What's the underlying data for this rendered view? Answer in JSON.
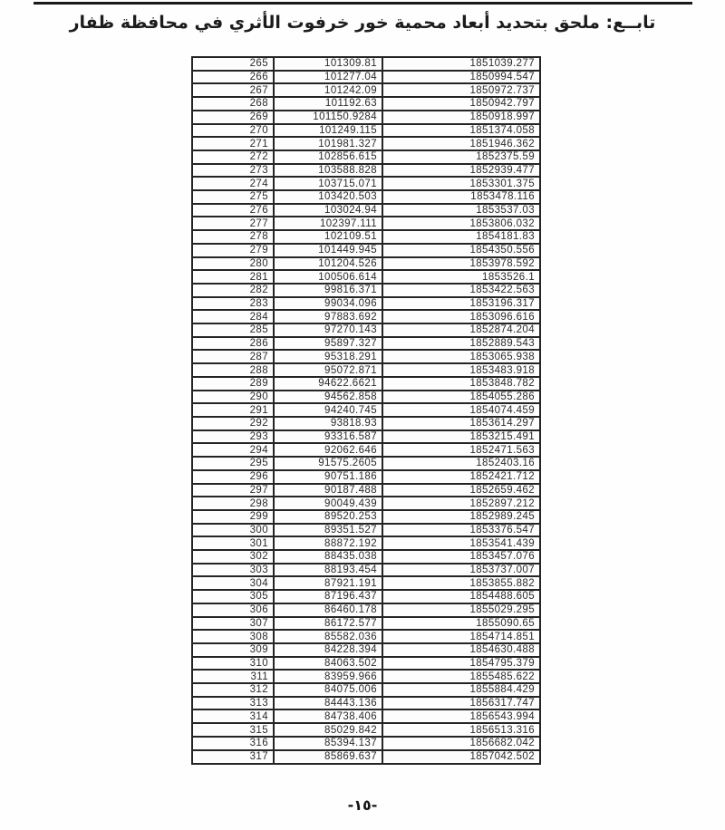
{
  "colors": {
    "ink": "#262626",
    "background": "#ffffff"
  },
  "header": {
    "title": "تابــع: ملحق بتحديد أبعاد محمية خور خرفوت الأثري في محافظة ظفار"
  },
  "table": {
    "rows": [
      [
        "265",
        "101309.81",
        "1851039.277"
      ],
      [
        "266",
        "101277.04",
        "1850994.547"
      ],
      [
        "267",
        "101242.09",
        "1850972.737"
      ],
      [
        "268",
        "101192.63",
        "1850942.797"
      ],
      [
        "269",
        "101150.9284",
        "1850918.997"
      ],
      [
        "270",
        "101249.115",
        "1851374.058"
      ],
      [
        "271",
        "101981.327",
        "1851946.362"
      ],
      [
        "272",
        "102856.615",
        "1852375.59"
      ],
      [
        "273",
        "103588.828",
        "1852939.477"
      ],
      [
        "274",
        "103715.071",
        "1853301.375"
      ],
      [
        "275",
        "103420.503",
        "1853478.116"
      ],
      [
        "276",
        "103024.94",
        "1853537.03"
      ],
      [
        "277",
        "102397.111",
        "1853806.032"
      ],
      [
        "278",
        "102109.51",
        "1854181.83"
      ],
      [
        "279",
        "101449.945",
        "1854350.556"
      ],
      [
        "280",
        "101204.526",
        "1853978.592"
      ],
      [
        "281",
        "100506.614",
        "1853526.1"
      ],
      [
        "282",
        "99816.371",
        "1853422.563"
      ],
      [
        "283",
        "99034.096",
        "1853196.317"
      ],
      [
        "284",
        "97883.692",
        "1853096.616"
      ],
      [
        "285",
        "97270.143",
        "1852874.204"
      ],
      [
        "286",
        "95897.327",
        "1852889.543"
      ],
      [
        "287",
        "95318.291",
        "1853065.938"
      ],
      [
        "288",
        "95072.871",
        "1853483.918"
      ],
      [
        "289",
        "94622.6621",
        "1853848.782"
      ],
      [
        "290",
        "94562.858",
        "1854055.286"
      ],
      [
        "291",
        "94240.745",
        "1854074.459"
      ],
      [
        "292",
        "93818.93",
        "1853614.297"
      ],
      [
        "293",
        "93316.587",
        "1853215.491"
      ],
      [
        "294",
        "92062.646",
        "1852471.563"
      ],
      [
        "295",
        "91575.2605",
        "1852403.16"
      ],
      [
        "296",
        "90751.186",
        "1852421.712"
      ],
      [
        "297",
        "90187.488",
        "1852659.462"
      ],
      [
        "298",
        "90049.439",
        "1852897.212"
      ],
      [
        "299",
        "89520.253",
        "1852989.245"
      ],
      [
        "300",
        "89351.527",
        "1853376.547"
      ],
      [
        "301",
        "88872.192",
        "1853541.439"
      ],
      [
        "302",
        "88435.038",
        "1853457.076"
      ],
      [
        "303",
        "88193.454",
        "1853737.007"
      ],
      [
        "304",
        "87921.191",
        "1853855.882"
      ],
      [
        "305",
        "87196.437",
        "1854488.605"
      ],
      [
        "306",
        "86460.178",
        "1855029.295"
      ],
      [
        "307",
        "86172.577",
        "1855090.65"
      ],
      [
        "308",
        "85582.036",
        "1854714.851"
      ],
      [
        "309",
        "84228.394",
        "1854630.488"
      ],
      [
        "310",
        "84063.502",
        "1854795.379"
      ],
      [
        "311",
        "83959.966",
        "1855485.622"
      ],
      [
        "312",
        "84075.006",
        "1855884.429"
      ],
      [
        "313",
        "84443.136",
        "1856317.747"
      ],
      [
        "314",
        "84738.406",
        "1856543.994"
      ],
      [
        "315",
        "85029.842",
        "1856513.316"
      ],
      [
        "316",
        "85394.137",
        "1856682.042"
      ],
      [
        "317",
        "85869.637",
        "1857042.502"
      ]
    ]
  },
  "footer": {
    "page_number": "-١٥-"
  }
}
